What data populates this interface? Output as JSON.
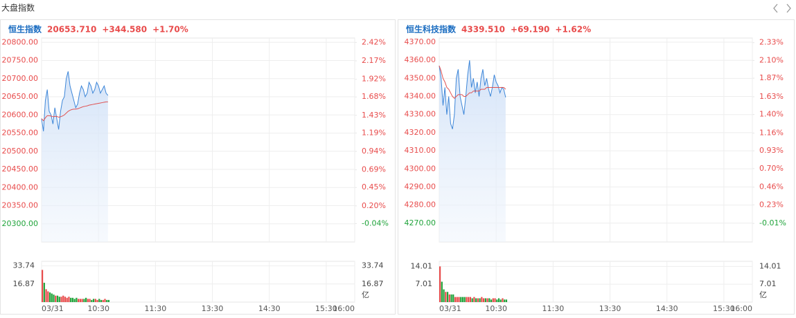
{
  "header": {
    "title": "大盘指数"
  },
  "chart_data": [
    {
      "type": "line",
      "title": "恒生指数",
      "last": "20653.710",
      "change": "+344.580",
      "change_pct": "+1.70%",
      "up_color": "#e84b4b",
      "down_color": "#1fa33a",
      "grid": true,
      "x": [
        0,
        2,
        4,
        6,
        8,
        10,
        12,
        14,
        16,
        18,
        20,
        22,
        24,
        26,
        28,
        30,
        32,
        34,
        36,
        38,
        40,
        42,
        44,
        46,
        48,
        50,
        52,
        54,
        56,
        58,
        60,
        62,
        64,
        66,
        68,
        70
      ],
      "xlim": [
        0,
        330
      ],
      "xticks": [
        {
          "value": 0,
          "label": "03/31"
        },
        {
          "value": 60,
          "label": "10:30"
        },
        {
          "value": 120,
          "label": "11:30"
        },
        {
          "value": 180,
          "label": "13:30"
        },
        {
          "value": 240,
          "label": "14:30"
        },
        {
          "value": 300,
          "label": "15:30"
        },
        {
          "value": 330,
          "label": "16:00"
        }
      ],
      "ylim": [
        20250,
        20812
      ],
      "yticks": [
        {
          "value": 20800,
          "label": "20800.00"
        },
        {
          "value": 20750,
          "label": "20750.00"
        },
        {
          "value": 20700,
          "label": "20700.00"
        },
        {
          "value": 20650,
          "label": "20650.00"
        },
        {
          "value": 20600,
          "label": "20600.00"
        },
        {
          "value": 20550,
          "label": "20550.00"
        },
        {
          "value": 20500,
          "label": "20500.00"
        },
        {
          "value": 20450,
          "label": "20450.00"
        },
        {
          "value": 20400,
          "label": "20400.00"
        },
        {
          "value": 20350,
          "label": "20350.00"
        },
        {
          "value": 20300,
          "label": "20300.00"
        }
      ],
      "y2lim": [
        -0.29,
        2.48
      ],
      "y2ticks": [
        {
          "value": 2.42,
          "label": "2.42%"
        },
        {
          "value": 2.17,
          "label": "2.17%"
        },
        {
          "value": 1.92,
          "label": "1.92%"
        },
        {
          "value": 1.68,
          "label": "1.68%"
        },
        {
          "value": 1.43,
          "label": "1.43%"
        },
        {
          "value": 1.19,
          "label": "1.19%"
        },
        {
          "value": 0.94,
          "label": "0.94%"
        },
        {
          "value": 0.69,
          "label": "0.69%"
        },
        {
          "value": 0.45,
          "label": "0.45%"
        },
        {
          "value": 0.2,
          "label": "0.20%"
        },
        {
          "value": -0.04,
          "label": "-0.04%"
        }
      ],
      "series": [
        {
          "color": "#3d86d8",
          "values": [
            20590,
            20555,
            20640,
            20670,
            20610,
            20600,
            20575,
            20620,
            20590,
            20560,
            20610,
            20640,
            20650,
            20700,
            20720,
            20680,
            20660,
            20640,
            20620,
            20630,
            20660,
            20680,
            20670,
            20650,
            20660,
            20690,
            20680,
            20660,
            20670,
            20690,
            20680,
            20660,
            20670,
            20680,
            20660,
            20653.71
          ]
        },
        {
          "color": "#e05050",
          "values": [
            20590,
            20584,
            20592,
            20598,
            20598,
            20597,
            20595,
            20596,
            20596,
            20594,
            20595,
            20597,
            20600,
            20605,
            20610,
            20613,
            20615,
            20616,
            20616,
            20617,
            20619,
            20621,
            20623,
            20624,
            20625,
            20627,
            20628,
            20629,
            20630,
            20631,
            20632,
            20633,
            20634,
            20635,
            20636,
            20636
          ]
        }
      ],
      "volume": {
        "unit": "亿",
        "ylim": [
          0,
          38
        ],
        "yticks": [
          33.74,
          16.87
        ],
        "values": [
          30,
          18,
          12,
          10,
          9,
          8,
          7,
          6,
          6,
          5,
          5,
          6,
          5,
          4,
          5,
          4,
          4,
          3,
          4,
          3,
          3,
          3,
          3,
          4,
          3,
          3,
          2,
          3,
          3,
          2,
          3,
          2,
          2,
          3,
          2,
          2
        ]
      }
    },
    {
      "type": "line",
      "title": "恒生科技指数",
      "last": "4339.510",
      "change": "+69.190",
      "change_pct": "+1.62%",
      "up_color": "#e84b4b",
      "down_color": "#1fa33a",
      "grid": true,
      "x": [
        0,
        2,
        4,
        6,
        8,
        10,
        12,
        14,
        16,
        18,
        20,
        22,
        24,
        26,
        28,
        30,
        32,
        34,
        36,
        38,
        40,
        42,
        44,
        46,
        48,
        50,
        52,
        54,
        56,
        58,
        60,
        62,
        64,
        66,
        68,
        70
      ],
      "xlim": [
        0,
        330
      ],
      "xticks": [
        {
          "value": 0,
          "label": "03/31"
        },
        {
          "value": 60,
          "label": "10:30"
        },
        {
          "value": 120,
          "label": "11:30"
        },
        {
          "value": 180,
          "label": "13:30"
        },
        {
          "value": 240,
          "label": "14:30"
        },
        {
          "value": 300,
          "label": "15:30"
        },
        {
          "value": 330,
          "label": "16:00"
        }
      ],
      "ylim": [
        4259.6,
        4372.3
      ],
      "yticks": [
        {
          "value": 4370,
          "label": "4370.00"
        },
        {
          "value": 4360,
          "label": "4360.00"
        },
        {
          "value": 4350,
          "label": "4350.00"
        },
        {
          "value": 4340,
          "label": "4340.00"
        },
        {
          "value": 4330,
          "label": "4330.00"
        },
        {
          "value": 4320,
          "label": "4320.00"
        },
        {
          "value": 4310,
          "label": "4310.00"
        },
        {
          "value": 4300,
          "label": "4300.00"
        },
        {
          "value": 4290,
          "label": "4290.00"
        },
        {
          "value": 4280,
          "label": "4280.00"
        },
        {
          "value": 4270,
          "label": "4270.00"
        }
      ],
      "y2lim": [
        -0.25,
        2.39
      ],
      "y2ticks": [
        {
          "value": 2.33,
          "label": "2.33%"
        },
        {
          "value": 2.1,
          "label": "2.10%"
        },
        {
          "value": 1.87,
          "label": "1.87%"
        },
        {
          "value": 1.63,
          "label": "1.63%"
        },
        {
          "value": 1.4,
          "label": "1.40%"
        },
        {
          "value": 1.16,
          "label": "1.16%"
        },
        {
          "value": 0.93,
          "label": "0.93%"
        },
        {
          "value": 0.7,
          "label": "0.70%"
        },
        {
          "value": 0.46,
          "label": "0.46%"
        },
        {
          "value": 0.23,
          "label": "0.23%"
        },
        {
          "value": -0.01,
          "label": "-0.01%"
        }
      ],
      "series": [
        {
          "color": "#3d86d8",
          "values": [
            4357,
            4350,
            4335,
            4345,
            4330,
            4340,
            4325,
            4322,
            4330,
            4350,
            4355,
            4340,
            4335,
            4330,
            4340,
            4352,
            4360,
            4345,
            4350,
            4342,
            4348,
            4340,
            4350,
            4355,
            4346,
            4350,
            4344,
            4340,
            4345,
            4352,
            4348,
            4346,
            4342,
            4345,
            4344,
            4339.51
          ]
        },
        {
          "color": "#e05050",
          "values": [
            4357,
            4354,
            4350,
            4348,
            4345,
            4344,
            4342,
            4340,
            4339,
            4340,
            4341,
            4341,
            4341,
            4340,
            4340,
            4341,
            4342,
            4342,
            4343,
            4343,
            4343,
            4343,
            4344,
            4344,
            4344,
            4345,
            4345,
            4345,
            4345,
            4345,
            4345,
            4345,
            4345,
            4345,
            4345,
            4344
          ]
        }
      ],
      "volume": {
        "unit": "亿",
        "ylim": [
          0,
          16
        ],
        "yticks": [
          14.01,
          7.01
        ],
        "values": [
          14,
          8,
          5,
          4,
          4,
          3,
          3,
          3,
          2,
          2,
          2,
          2,
          2,
          2,
          2,
          2,
          2,
          1.5,
          2,
          1.5,
          1.5,
          1.5,
          2,
          1.5,
          1.5,
          1.5,
          1.5,
          1,
          1.5,
          1.5,
          1,
          1.5,
          1,
          1.5,
          1,
          1
        ]
      }
    }
  ]
}
